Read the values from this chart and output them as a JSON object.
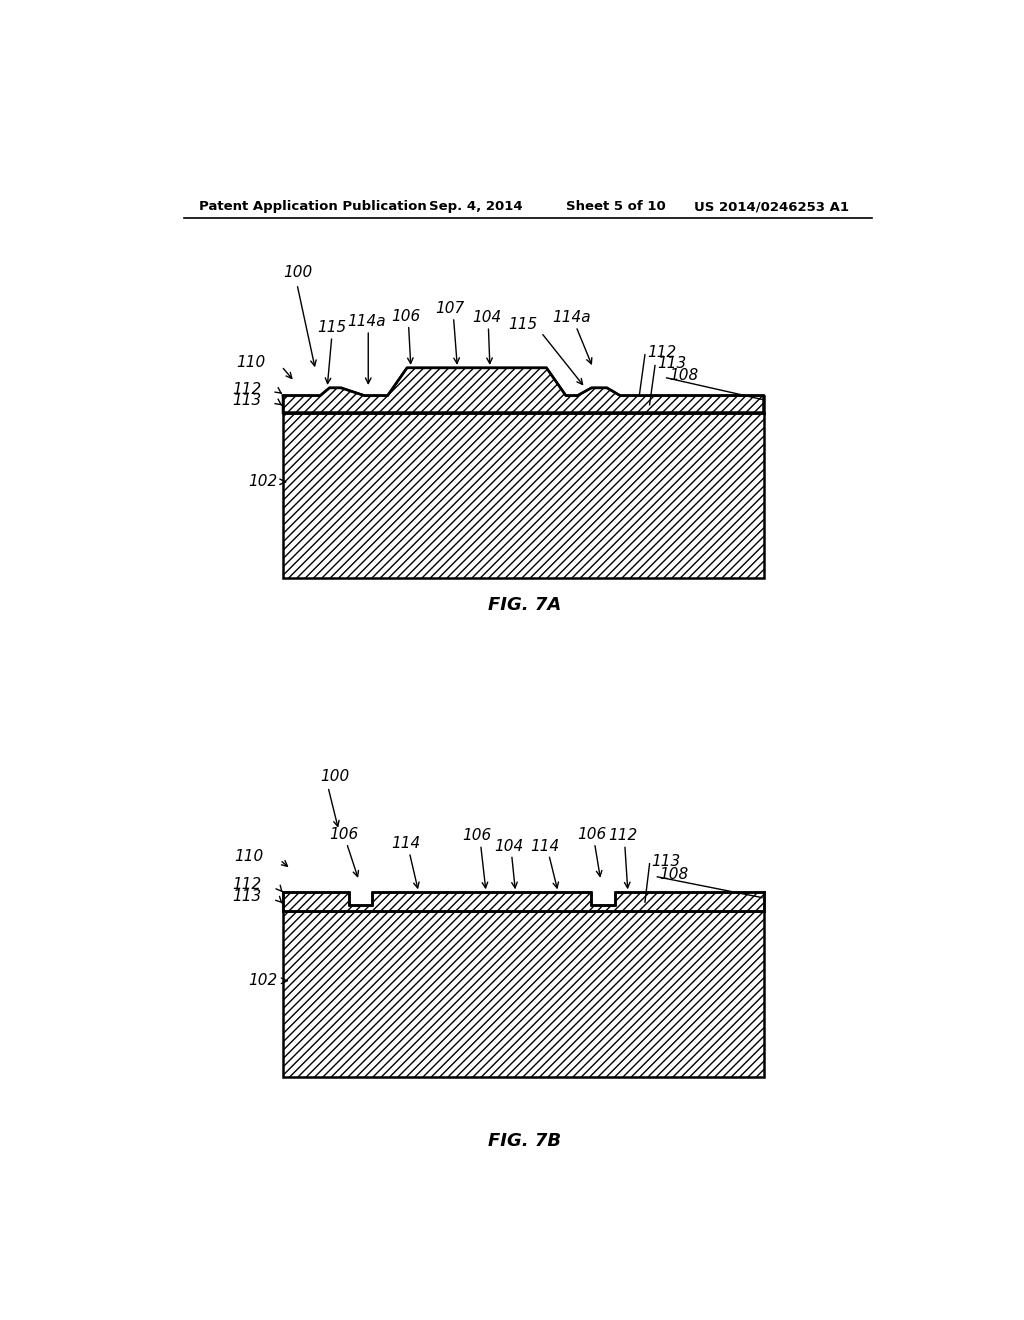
{
  "bg_color": "#ffffff",
  "header_text": "Patent Application Publication",
  "header_date": "Sep. 4, 2014",
  "header_sheet": "Sheet 5 of 10",
  "header_patent": "US 2014/0246253 A1",
  "fig7a_label": "FIG. 7A",
  "fig7b_label": "FIG. 7B",
  "line_color": "#000000",
  "text_color": "#000000"
}
